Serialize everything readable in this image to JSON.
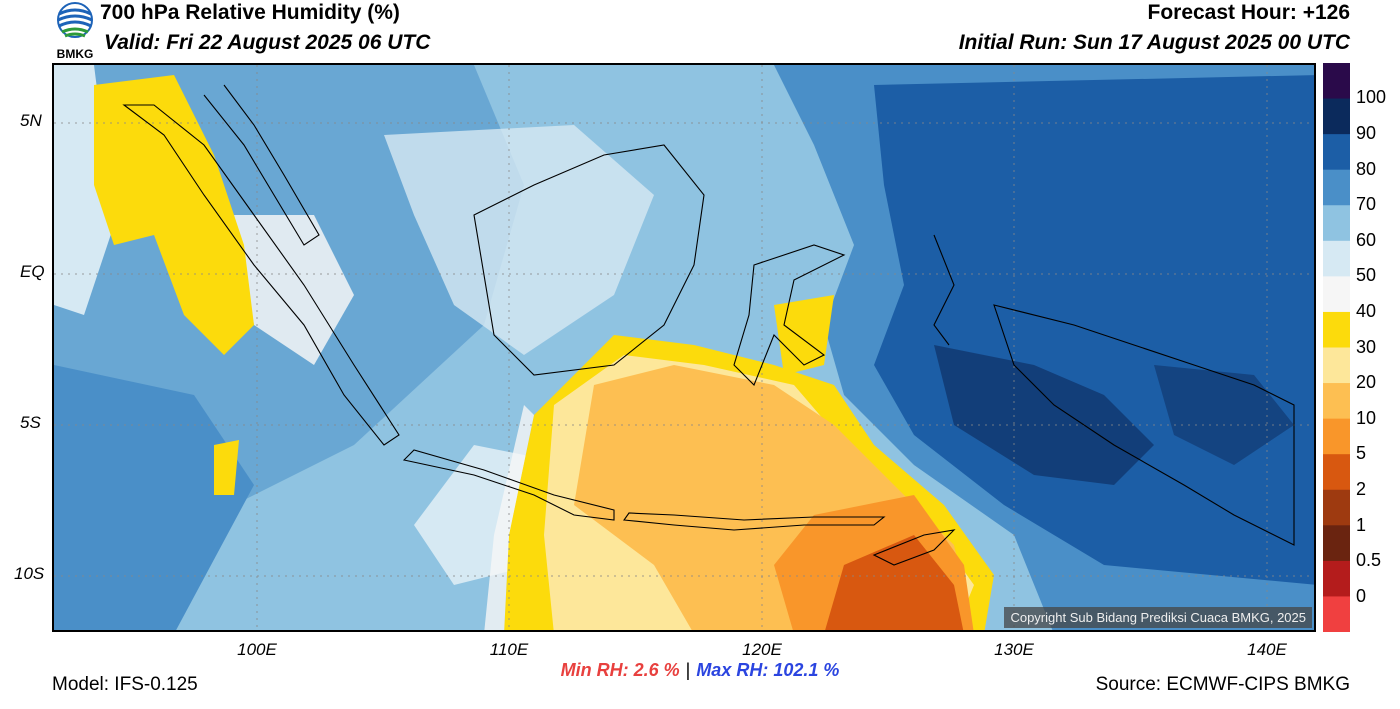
{
  "header": {
    "title": "700 hPa Relative Humidity (%)",
    "valid": "Valid: Fri 22 August 2025 06 UTC",
    "forecast_hour": "Forecast Hour: +126",
    "initial_run": "Initial Run: Sun 17 August 2025 00 UTC",
    "logo_text": "BMKG"
  },
  "map": {
    "lat_labels": [
      "5N",
      "EQ",
      "5S",
      "10S"
    ],
    "lon_labels": [
      "100E",
      "110E",
      "120E",
      "130E",
      "140E"
    ],
    "lat_range": [
      -12,
      7
    ],
    "lon_range": [
      92,
      142
    ],
    "copyright": "Copyright Sub Bidang Prediksi Cuaca BMKG, 2025"
  },
  "colorbar": {
    "labels": [
      "100",
      "90",
      "80",
      "70",
      "60",
      "50",
      "40",
      "30",
      "20",
      "10",
      "5",
      "2",
      "1",
      "0.5",
      "0"
    ],
    "colors_top_to_bottom": [
      "#2a0a4a",
      "#0b2a5c",
      "#1c5ea6",
      "#4a8fc8",
      "#8fc3e1",
      "#d6e9f3",
      "#f6f6f6",
      "#fcdb0c",
      "#fde79a",
      "#fdbf52",
      "#f9962a",
      "#d85810",
      "#9e3a10",
      "#6a2410",
      "#b41c1c",
      "#f04040"
    ]
  },
  "stats": {
    "min_rh": "Min RH:   2.6 %",
    "separator": "|",
    "max_rh": "Max RH: 102.1 %"
  },
  "footer": {
    "model": "Model: IFS-0.125",
    "source": "Source: ECMWF-CIPS BMKG"
  }
}
